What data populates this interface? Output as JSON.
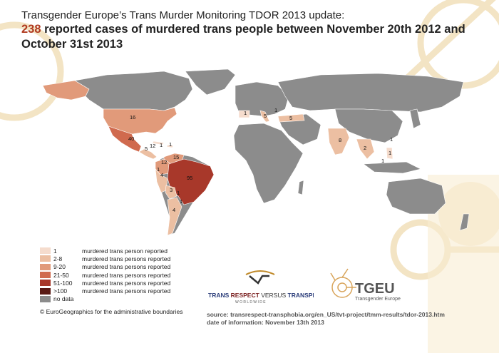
{
  "title": {
    "line1": "Transgender Europe’s Trans Murder Monitoring TDOR 2013 update:",
    "line2_count": "238",
    "line2_rest": " reported cases of murdered trans people between November 20th 2012 and",
    "line3": "October 31st 2013"
  },
  "colors": {
    "no_data": "#8c8c8c",
    "c1": "#f5dccd",
    "c2_8": "#ecbfa2",
    "c9_20": "#e19a7a",
    "c21_50": "#d06a4e",
    "c51_100": "#a8382a",
    "c100plus": "#5a1a14",
    "decor": "#f3e4c4"
  },
  "map_labels": [
    {
      "id": "usa",
      "text": "16"
    },
    {
      "id": "mexico",
      "text": "40"
    },
    {
      "id": "guatemala",
      "text": "5"
    },
    {
      "id": "honduras",
      "text": "12"
    },
    {
      "id": "dominican",
      "text": "1"
    },
    {
      "id": "puertorico",
      "text": "1"
    },
    {
      "id": "venezuela",
      "text": "15"
    },
    {
      "id": "colombia",
      "text": "12"
    },
    {
      "id": "ecuador",
      "text": "1"
    },
    {
      "id": "peru",
      "text": "4"
    },
    {
      "id": "brazil",
      "text": "95"
    },
    {
      "id": "bolivia",
      "text": "3"
    },
    {
      "id": "paraguay",
      "text": "1"
    },
    {
      "id": "uruguay",
      "text": "1"
    },
    {
      "id": "argentina",
      "text": "4"
    },
    {
      "id": "spain",
      "text": "1"
    },
    {
      "id": "italy",
      "text": "5"
    },
    {
      "id": "serbia",
      "text": "1"
    },
    {
      "id": "turkey",
      "text": "5"
    },
    {
      "id": "india",
      "text": "8"
    },
    {
      "id": "thailand",
      "text": "2"
    },
    {
      "id": "china",
      "text": "1"
    },
    {
      "id": "philippines",
      "text": "1"
    },
    {
      "id": "malaysia",
      "text": "1"
    }
  ],
  "legend": [
    {
      "range": "1",
      "label": "murdered trans person reported",
      "color": "#f5dccd"
    },
    {
      "range": "2-8",
      "label": "murdered trans persons reported",
      "color": "#ecbfa2"
    },
    {
      "range": "9-20",
      "label": "murdered trans persons reported",
      "color": "#e19a7a"
    },
    {
      "range": "21-50",
      "label": "murdered trans persons reported",
      "color": "#d06a4e"
    },
    {
      "range": "51-100",
      "label": "murdered trans persons reported",
      "color": "#a8382a"
    },
    {
      "range": ">100",
      "label": "murdered trans persons reported",
      "color": "#5a1a14"
    },
    {
      "range": "no data",
      "label": "",
      "color": "#8c8c8c"
    }
  ],
  "copyright": "© EuroGeographics for the administrative boundaries",
  "logos": {
    "trv_word_trans": "TRANS",
    "trv_word_respect": "RESPECT",
    "trv_word_versus": "VERSUS",
    "trv_word_transphobia": "TRANSPHOBIA",
    "trv_sub": "W O R L D W I D E",
    "tgeu_name": "TGEU",
    "tgeu_sub": "Transgender Europe"
  },
  "source": {
    "line1": "source: transrespect-transphobia.org/en_US/tvt-project/tmm-results/tdor-2013.htm",
    "line2": "date of information: November 13th 2013"
  }
}
